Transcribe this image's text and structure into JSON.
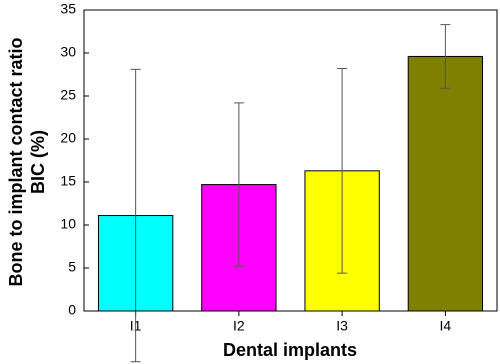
{
  "chart_data": {
    "type": "bar",
    "ylabel": [
      "Bone to implant contact ratio",
      "BIC (%)"
    ],
    "xlabel": "Dental implants",
    "categories": [
      "I1",
      "I2",
      "I3",
      "I4"
    ],
    "values": [
      11.1,
      14.7,
      16.3,
      29.6
    ],
    "errors": [
      17.0,
      9.5,
      11.9,
      3.7
    ],
    "colors": [
      "#00ffff",
      "#ff00ff",
      "#ffff00",
      "#808000"
    ],
    "ylim": [
      0,
      35
    ],
    "yticks": [
      0,
      5,
      10,
      15,
      20,
      25,
      30,
      35
    ]
  }
}
